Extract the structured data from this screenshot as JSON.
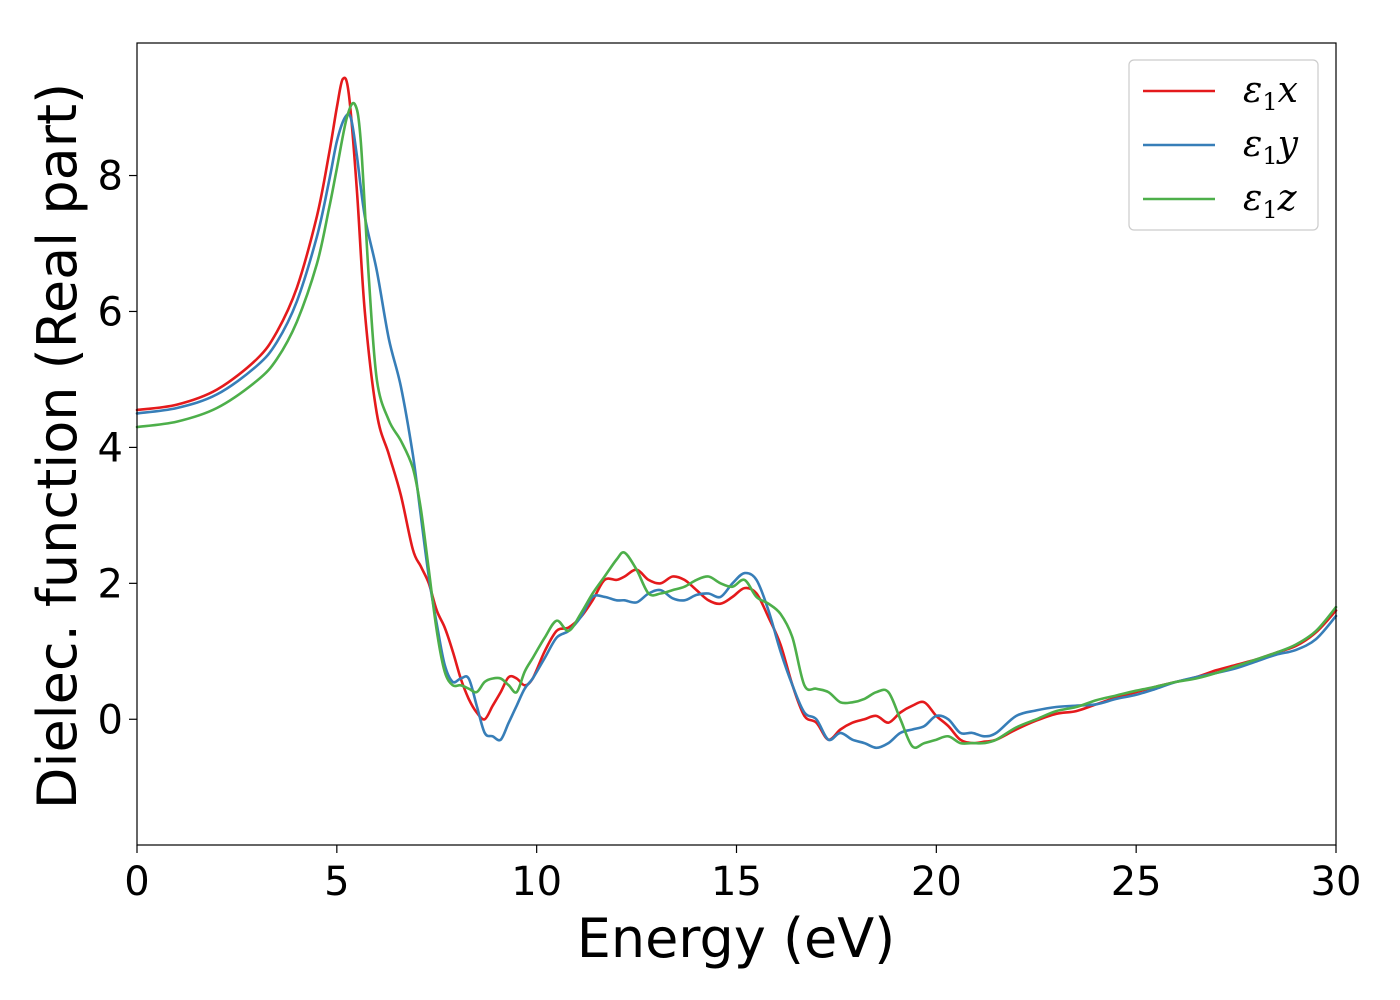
{
  "chart_data": {
    "type": "line",
    "title": "",
    "xlabel": "Energy (eV)",
    "ylabel": "Dielec. function (Real part)",
    "xlim": [
      0,
      30
    ],
    "ylim": [
      -1.85,
      9.95
    ],
    "xticks": [
      0,
      5,
      10,
      15,
      20,
      25,
      30
    ],
    "yticks": [
      0,
      2,
      4,
      6,
      8
    ],
    "grid": false,
    "legend_position": "top-right",
    "series": [
      {
        "name": "ε1x",
        "legend": {
          "symbol": "ε",
          "sub": "1",
          "var": "x"
        },
        "color": "#e41a1c",
        "x": [
          0,
          1,
          2,
          3,
          3.5,
          4,
          4.5,
          4.8,
          5.0,
          5.15,
          5.3,
          5.5,
          5.7,
          6.0,
          6.3,
          6.6,
          6.9,
          7.1,
          7.3,
          7.5,
          7.7,
          7.9,
          8.1,
          8.3,
          8.5,
          8.7,
          8.9,
          9.1,
          9.3,
          9.5,
          9.7,
          9.9,
          10.2,
          10.5,
          10.8,
          11.1,
          11.4,
          11.7,
          12.0,
          12.2,
          12.5,
          12.8,
          13.1,
          13.4,
          13.7,
          14.0,
          14.3,
          14.6,
          14.9,
          15.2,
          15.5,
          15.8,
          16.1,
          16.4,
          16.7,
          17.0,
          17.3,
          17.6,
          17.9,
          18.2,
          18.5,
          18.8,
          19.1,
          19.4,
          19.7,
          20.0,
          20.3,
          20.6,
          20.9,
          21.2,
          21.5,
          22.0,
          22.5,
          23.0,
          23.5,
          24.0,
          24.5,
          25.0,
          25.5,
          26.0,
          26.5,
          27.0,
          27.5,
          28.0,
          28.5,
          29.0,
          29.5,
          30.0
        ],
        "y": [
          4.55,
          4.63,
          4.85,
          5.3,
          5.7,
          6.35,
          7.4,
          8.3,
          9.0,
          9.42,
          9.2,
          7.8,
          6.0,
          4.5,
          3.9,
          3.3,
          2.5,
          2.25,
          2.0,
          1.6,
          1.35,
          1.0,
          0.6,
          0.3,
          0.1,
          0.0,
          0.2,
          0.4,
          0.62,
          0.6,
          0.5,
          0.6,
          1.0,
          1.3,
          1.35,
          1.5,
          1.75,
          2.05,
          2.05,
          2.1,
          2.2,
          2.05,
          2.0,
          2.1,
          2.05,
          1.9,
          1.75,
          1.7,
          1.8,
          1.93,
          1.85,
          1.5,
          1.1,
          0.5,
          0.05,
          -0.05,
          -0.3,
          -0.15,
          -0.05,
          0.0,
          0.05,
          -0.05,
          0.1,
          0.2,
          0.25,
          0.05,
          -0.1,
          -0.3,
          -0.35,
          -0.33,
          -0.3,
          -0.15,
          -0.02,
          0.08,
          0.12,
          0.22,
          0.32,
          0.4,
          0.48,
          0.55,
          0.62,
          0.72,
          0.8,
          0.88,
          0.98,
          1.08,
          1.28,
          1.6
        ]
      },
      {
        "name": "ε1y",
        "legend": {
          "symbol": "ε",
          "sub": "1",
          "var": "y"
        },
        "color": "#377eb8",
        "x": [
          0,
          1,
          2,
          3,
          3.5,
          4,
          4.5,
          4.8,
          5.0,
          5.2,
          5.35,
          5.5,
          5.7,
          6.0,
          6.3,
          6.6,
          6.9,
          7.1,
          7.3,
          7.5,
          7.7,
          7.9,
          8.1,
          8.3,
          8.5,
          8.7,
          8.9,
          9.1,
          9.3,
          9.5,
          9.7,
          9.9,
          10.2,
          10.5,
          10.8,
          11.1,
          11.4,
          11.7,
          12.0,
          12.2,
          12.5,
          12.8,
          13.1,
          13.4,
          13.7,
          14.0,
          14.3,
          14.6,
          14.9,
          15.2,
          15.5,
          15.8,
          16.1,
          16.4,
          16.7,
          17.0,
          17.3,
          17.6,
          17.9,
          18.2,
          18.5,
          18.8,
          19.1,
          19.4,
          19.7,
          20.0,
          20.3,
          20.6,
          20.9,
          21.2,
          21.5,
          22.0,
          22.5,
          23.0,
          23.5,
          24.0,
          24.5,
          25.0,
          25.5,
          26.0,
          26.5,
          27.0,
          27.5,
          28.0,
          28.5,
          29.0,
          29.5,
          30.0
        ],
        "y": [
          4.5,
          4.58,
          4.78,
          5.2,
          5.55,
          6.15,
          7.1,
          7.9,
          8.5,
          8.85,
          8.85,
          8.3,
          7.4,
          6.6,
          5.6,
          4.9,
          3.9,
          3.0,
          2.1,
          1.4,
          0.8,
          0.55,
          0.6,
          0.6,
          0.2,
          -0.2,
          -0.25,
          -0.3,
          -0.05,
          0.2,
          0.45,
          0.6,
          0.9,
          1.2,
          1.3,
          1.5,
          1.8,
          1.8,
          1.75,
          1.75,
          1.72,
          1.85,
          1.9,
          1.78,
          1.75,
          1.83,
          1.85,
          1.8,
          2.0,
          2.15,
          2.05,
          1.6,
          1.0,
          0.5,
          0.1,
          0.0,
          -0.3,
          -0.2,
          -0.3,
          -0.35,
          -0.42,
          -0.35,
          -0.2,
          -0.15,
          -0.1,
          0.05,
          0.0,
          -0.2,
          -0.2,
          -0.25,
          -0.2,
          0.05,
          0.13,
          0.18,
          0.2,
          0.22,
          0.3,
          0.36,
          0.45,
          0.55,
          0.62,
          0.68,
          0.75,
          0.85,
          0.95,
          1.02,
          1.18,
          1.52
        ]
      },
      {
        "name": "ε1z",
        "legend": {
          "symbol": "ε",
          "sub": "1",
          "var": "z"
        },
        "color": "#4daf4a",
        "x": [
          0,
          1,
          2,
          3,
          3.5,
          4,
          4.5,
          4.8,
          5.0,
          5.25,
          5.45,
          5.6,
          5.8,
          6.0,
          6.3,
          6.6,
          6.9,
          7.1,
          7.3,
          7.5,
          7.7,
          7.9,
          8.1,
          8.3,
          8.5,
          8.7,
          8.9,
          9.1,
          9.3,
          9.5,
          9.7,
          9.9,
          10.2,
          10.5,
          10.8,
          11.1,
          11.4,
          11.7,
          12.0,
          12.2,
          12.5,
          12.8,
          13.1,
          13.4,
          13.7,
          14.0,
          14.3,
          14.6,
          14.9,
          15.2,
          15.5,
          15.8,
          16.1,
          16.4,
          16.7,
          17.0,
          17.3,
          17.6,
          17.9,
          18.2,
          18.5,
          18.8,
          19.1,
          19.4,
          19.7,
          20.0,
          20.3,
          20.6,
          20.9,
          21.2,
          21.5,
          22.0,
          22.5,
          23.0,
          23.5,
          24.0,
          24.5,
          25.0,
          25.5,
          26.0,
          26.5,
          27.0,
          27.5,
          28.0,
          28.5,
          29.0,
          29.5,
          30.0
        ],
        "y": [
          4.3,
          4.38,
          4.58,
          4.98,
          5.3,
          5.85,
          6.7,
          7.5,
          8.1,
          8.85,
          9.05,
          8.5,
          6.5,
          5.0,
          4.4,
          4.1,
          3.7,
          3.1,
          2.2,
          1.3,
          0.7,
          0.5,
          0.5,
          0.45,
          0.4,
          0.55,
          0.6,
          0.6,
          0.5,
          0.4,
          0.7,
          0.9,
          1.2,
          1.45,
          1.3,
          1.55,
          1.85,
          2.1,
          2.35,
          2.45,
          2.2,
          1.85,
          1.85,
          1.9,
          1.95,
          2.05,
          2.1,
          2.0,
          1.95,
          2.05,
          1.8,
          1.7,
          1.55,
          1.2,
          0.5,
          0.45,
          0.4,
          0.25,
          0.25,
          0.3,
          0.4,
          0.4,
          0.0,
          -0.4,
          -0.35,
          -0.3,
          -0.25,
          -0.35,
          -0.35,
          -0.35,
          -0.3,
          -0.12,
          0.0,
          0.12,
          0.18,
          0.28,
          0.35,
          0.42,
          0.48,
          0.55,
          0.6,
          0.68,
          0.78,
          0.88,
          0.98,
          1.1,
          1.3,
          1.65
        ]
      }
    ]
  }
}
